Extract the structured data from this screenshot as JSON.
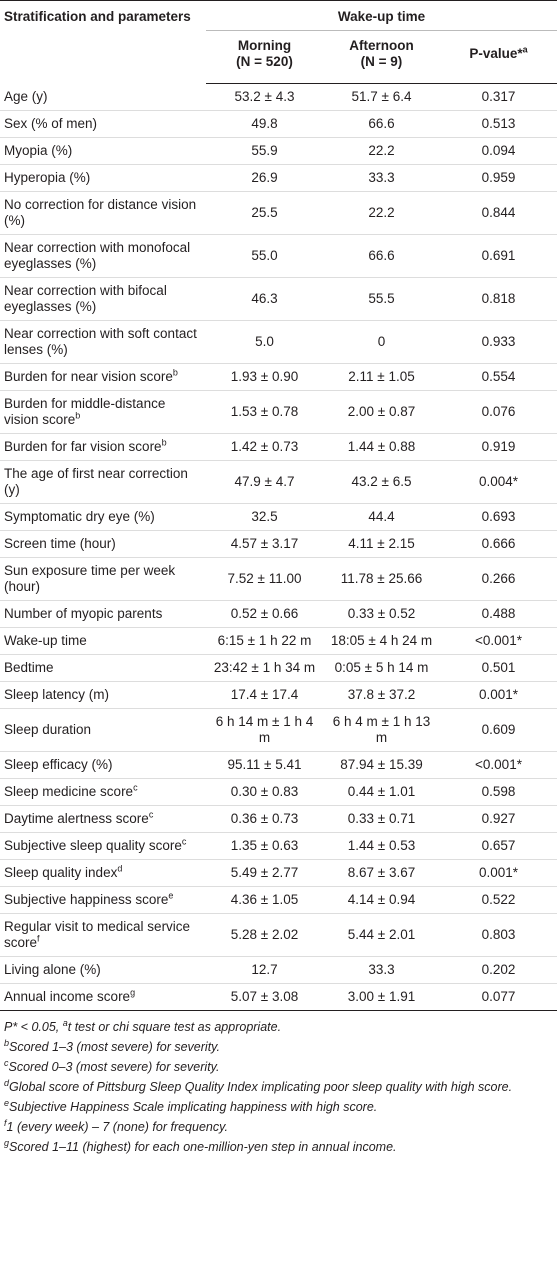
{
  "header": {
    "col_title": "Stratification and parameters",
    "group_title": "Wake-up time",
    "columns": [
      {
        "name": "Morning",
        "n": "(N = 520)"
      },
      {
        "name": "Afternoon",
        "n": "(N = 9)"
      }
    ],
    "p_title": "P-value*",
    "p_sup": "a"
  },
  "rows": [
    {
      "label": "Age (y)",
      "morning": "53.2 ± 4.3",
      "afternoon": "51.7 ± 6.4",
      "p": "0.317"
    },
    {
      "label": "Sex (% of men)",
      "morning": "49.8",
      "afternoon": "66.6",
      "p": "0.513"
    },
    {
      "label": "Myopia (%)",
      "morning": "55.9",
      "afternoon": "22.2",
      "p": "0.094"
    },
    {
      "label": "Hyperopia (%)",
      "morning": "26.9",
      "afternoon": "33.3",
      "p": "0.959"
    },
    {
      "label": "No correction for distance vision (%)",
      "morning": "25.5",
      "afternoon": "22.2",
      "p": "0.844"
    },
    {
      "label": "Near correction with monofocal eyeglasses (%)",
      "morning": "55.0",
      "afternoon": "66.6",
      "p": "0.691"
    },
    {
      "label": "Near correction with bifocal eyeglasses (%)",
      "morning": "46.3",
      "afternoon": "55.5",
      "p": "0.818"
    },
    {
      "label": "Near correction with soft contact lenses (%)",
      "morning": "5.0",
      "afternoon": "0",
      "p": "0.933"
    },
    {
      "label": "Burden for near vision score",
      "sup": "b",
      "morning": "1.93 ± 0.90",
      "afternoon": "2.11 ± 1.05",
      "p": "0.554"
    },
    {
      "label": "Burden for middle-distance vision score",
      "sup": "b",
      "morning": "1.53 ± 0.78",
      "afternoon": "2.00 ± 0.87",
      "p": "0.076"
    },
    {
      "label": "Burden for far vision score",
      "sup": "b",
      "morning": "1.42 ± 0.73",
      "afternoon": "1.44 ± 0.88",
      "p": "0.919"
    },
    {
      "label": "The age of first near correction (y)",
      "morning": "47.9 ± 4.7",
      "afternoon": "43.2 ± 6.5",
      "p": "0.004*"
    },
    {
      "label": "Symptomatic dry eye (%)",
      "morning": "32.5",
      "afternoon": "44.4",
      "p": "0.693"
    },
    {
      "label": "Screen time (hour)",
      "morning": "4.57 ± 3.17",
      "afternoon": "4.11 ± 2.15",
      "p": "0.666"
    },
    {
      "label": "Sun exposure time per week (hour)",
      "morning": "7.52 ± 11.00",
      "afternoon": "11.78 ± 25.66",
      "p": "0.266"
    },
    {
      "label": "Number of myopic parents",
      "morning": "0.52 ± 0.66",
      "afternoon": "0.33 ± 0.52",
      "p": "0.488"
    },
    {
      "label": "Wake-up time",
      "morning": "6:15 ± 1 h 22 m",
      "afternoon": "18:05 ± 4 h 24 m",
      "p": "<0.001*"
    },
    {
      "label": "Bedtime",
      "morning": "23:42 ± 1 h 34 m",
      "afternoon": "0:05 ± 5 h 14 m",
      "p": "0.501"
    },
    {
      "label": "Sleep latency (m)",
      "morning": "17.4 ± 17.4",
      "afternoon": "37.8 ± 37.2",
      "p": "0.001*"
    },
    {
      "label": "Sleep duration",
      "morning": "6 h 14 m ± 1 h 4 m",
      "afternoon": "6 h 4 m ± 1 h 13 m",
      "p": "0.609"
    },
    {
      "label": "Sleep efficacy (%)",
      "morning": "95.11 ± 5.41",
      "afternoon": "87.94 ± 15.39",
      "p": "<0.001*"
    },
    {
      "label": "Sleep medicine score",
      "sup": "c",
      "morning": "0.30 ± 0.83",
      "afternoon": "0.44 ± 1.01",
      "p": "0.598"
    },
    {
      "label": "Daytime alertness score",
      "sup": "c",
      "morning": "0.36 ± 0.73",
      "afternoon": "0.33 ± 0.71",
      "p": "0.927"
    },
    {
      "label": "Subjective sleep quality score",
      "sup": "c",
      "morning": "1.35 ± 0.63",
      "afternoon": "1.44 ± 0.53",
      "p": "0.657"
    },
    {
      "label": "Sleep quality index",
      "sup": "d",
      "morning": "5.49 ± 2.77",
      "afternoon": "8.67 ± 3.67",
      "p": "0.001*"
    },
    {
      "label": "Subjective happiness score",
      "sup": "e",
      "morning": "4.36 ± 1.05",
      "afternoon": "4.14 ± 0.94",
      "p": "0.522"
    },
    {
      "label": "Regular visit to medical service score",
      "sup": "f",
      "morning": "5.28 ± 2.02",
      "afternoon": "5.44 ± 2.01",
      "p": "0.803"
    },
    {
      "label": "Living alone (%)",
      "morning": "12.7",
      "afternoon": "33.3",
      "p": "0.202"
    },
    {
      "label": "Annual income score",
      "sup": "g",
      "morning": "5.07 ± 3.08",
      "afternoon": "3.00 ± 1.91",
      "p": "0.077"
    }
  ],
  "footnotes": [
    {
      "lead": "P* < 0.05, ",
      "sup": "a",
      "text": "t test or chi square test as appropriate."
    },
    {
      "sup": "b",
      "text": "Scored 1–3 (most severe) for severity."
    },
    {
      "sup": "c",
      "text": "Scored 0–3 (most severe) for severity."
    },
    {
      "sup": "d",
      "text": "Global score of Pittsburg Sleep Quality Index implicating poor sleep quality with high score."
    },
    {
      "sup": "e",
      "text": "Subjective Happiness Scale implicating happiness with high score."
    },
    {
      "sup": "f",
      "text": "1 (every week) – 7 (none) for frequency."
    },
    {
      "sup": "g",
      "text": "Scored 1–11 (highest) for each one-million-yen step in annual income."
    }
  ]
}
